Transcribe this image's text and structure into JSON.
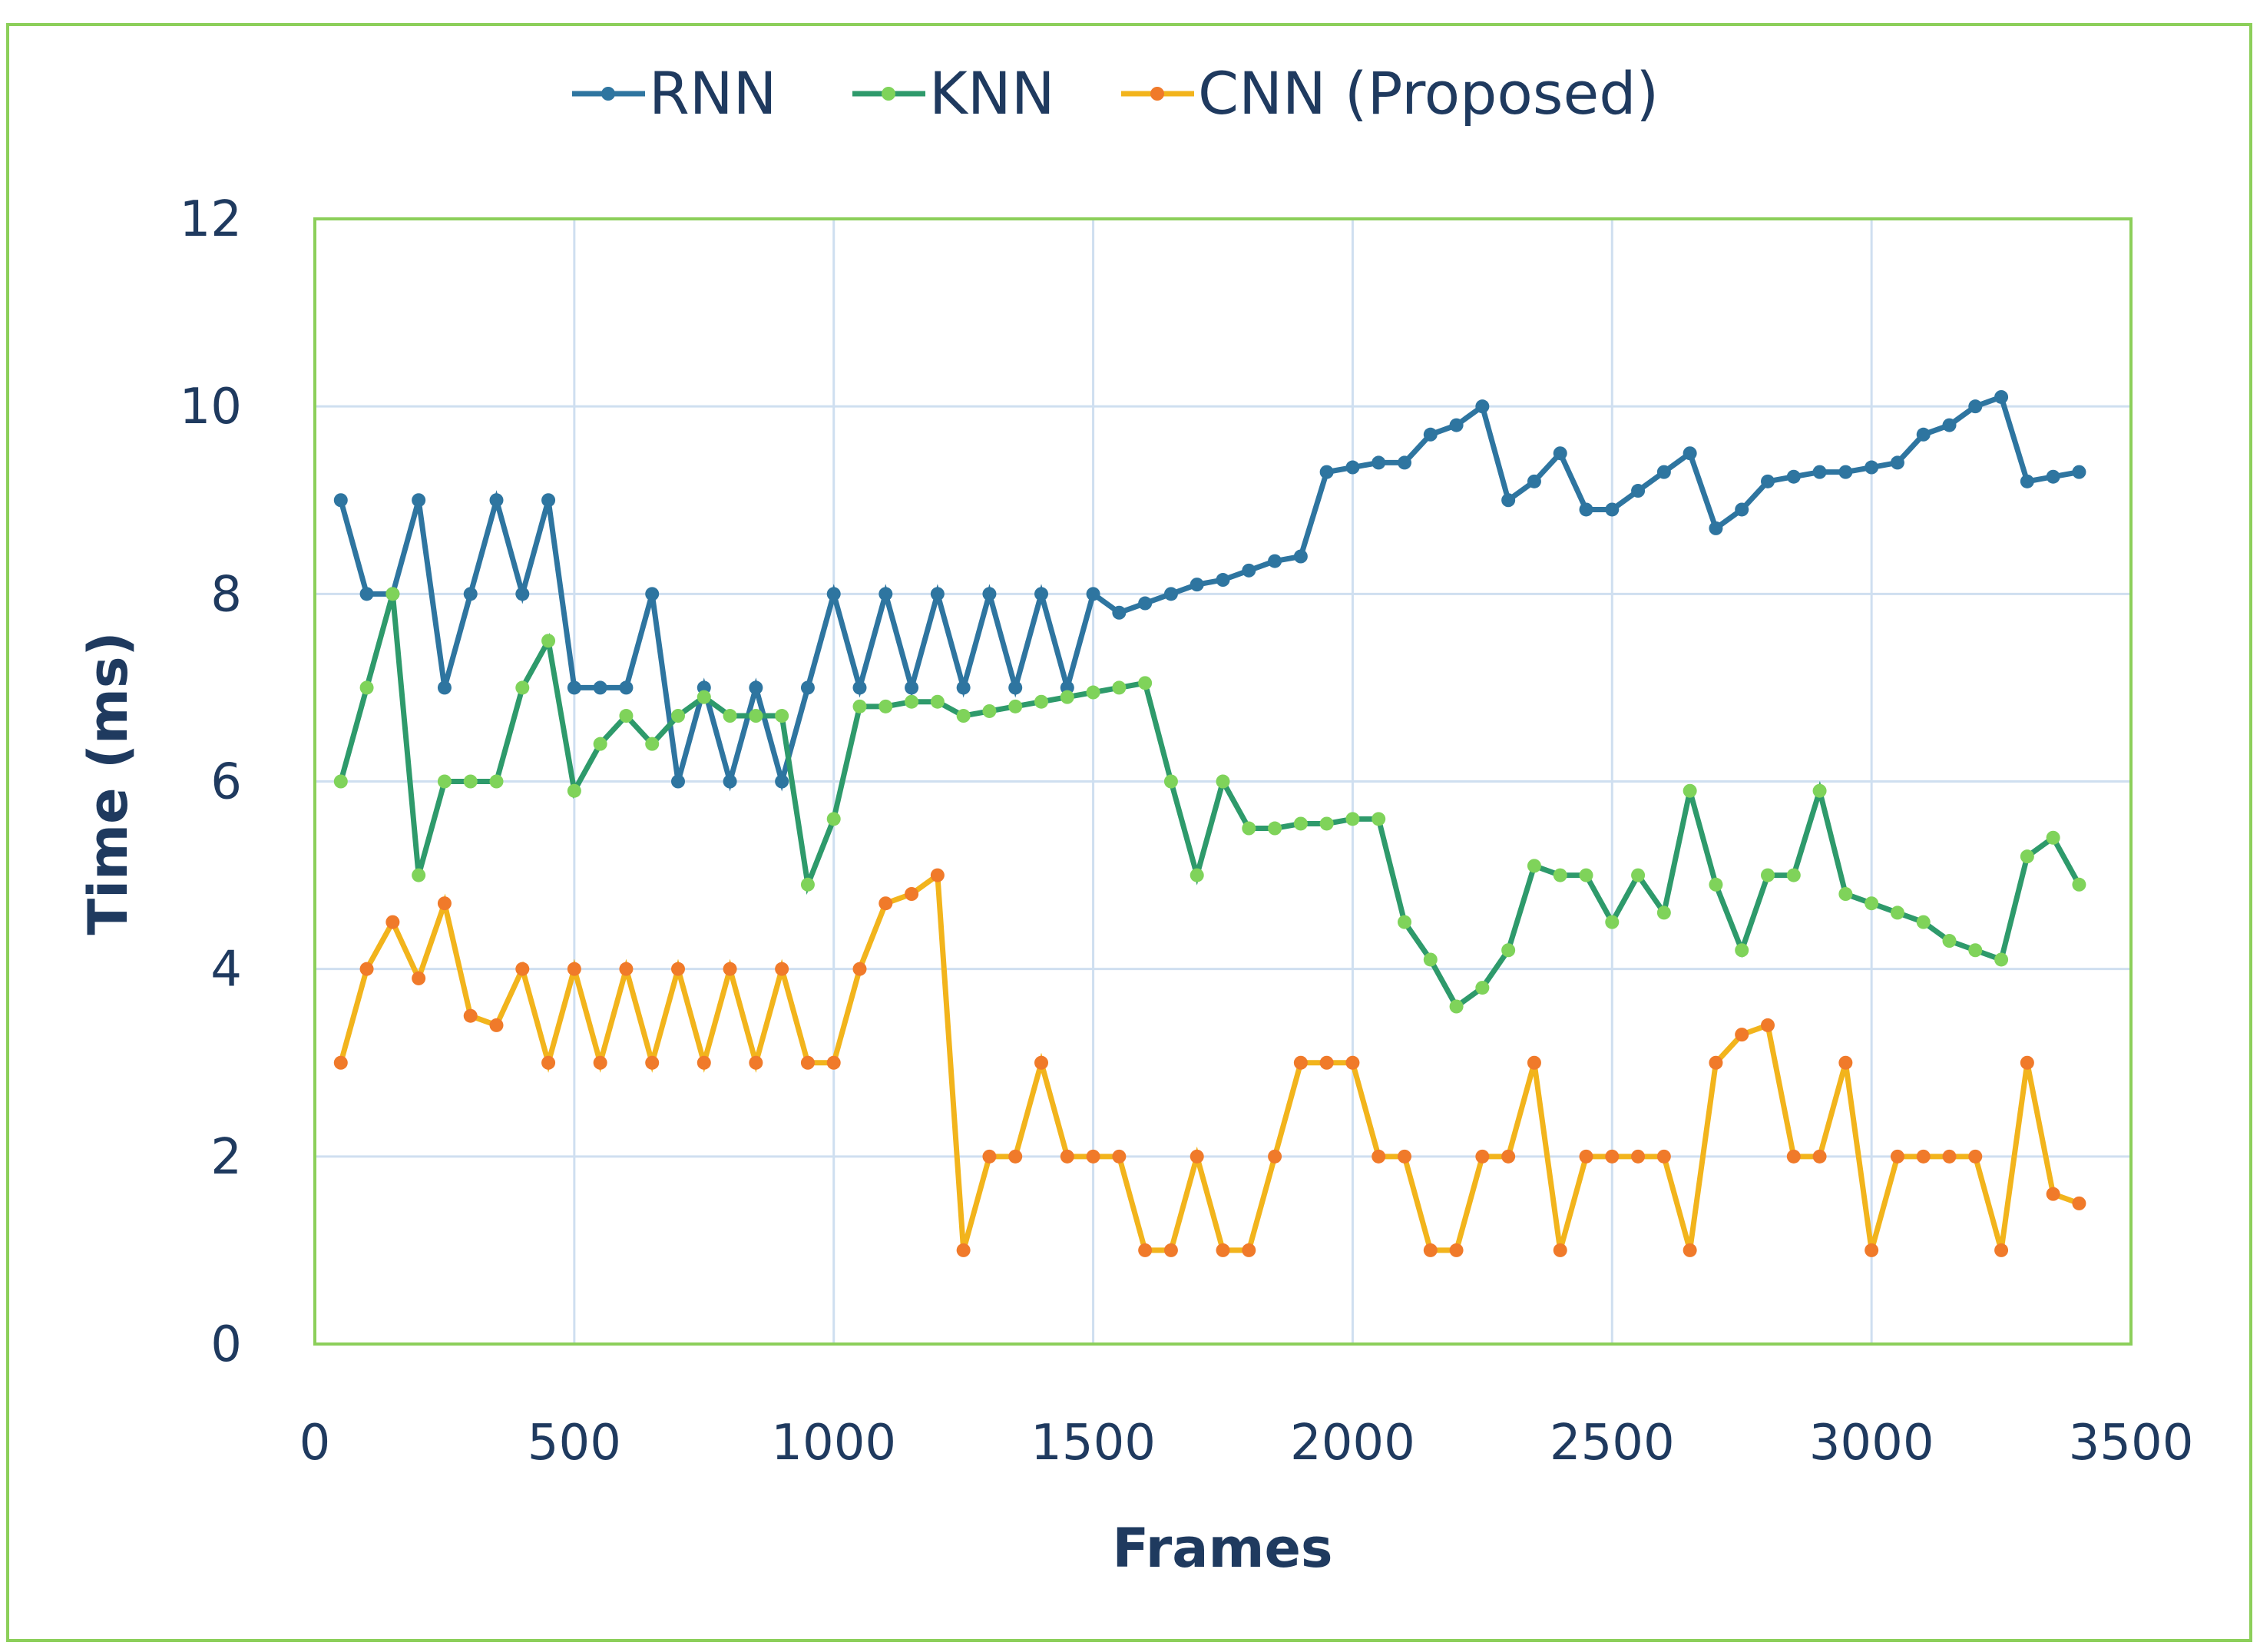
{
  "chart_data": {
    "type": "line",
    "xlabel": "Frames",
    "ylabel": "Time (ms)",
    "xlim": [
      0,
      3500
    ],
    "ylim": [
      0,
      12
    ],
    "xticks": [
      "0",
      "500",
      "1000",
      "1500",
      "2000",
      "2500",
      "3000",
      "3500"
    ],
    "yticks": [
      "0",
      "2",
      "4",
      "6",
      "8",
      "10",
      "12"
    ],
    "grid": true,
    "legend_position": "top-center",
    "x": [
      50,
      100,
      150,
      200,
      250,
      300,
      350,
      400,
      450,
      500,
      550,
      600,
      650,
      700,
      750,
      800,
      850,
      900,
      950,
      1000,
      1050,
      1100,
      1150,
      1200,
      1250,
      1300,
      1350,
      1400,
      1450,
      1500,
      1550,
      1600,
      1650,
      1700,
      1750,
      1800,
      1850,
      1900,
      1950,
      2000,
      2050,
      2100,
      2150,
      2200,
      2250,
      2300,
      2350,
      2400,
      2450,
      2500,
      2550,
      2600,
      2650,
      2700,
      2750,
      2800,
      2850,
      2900,
      2950,
      3000,
      3050,
      3100,
      3150,
      3200,
      3250,
      3300,
      3350,
      3400
    ],
    "series": [
      {
        "name": "RNN",
        "color": "#2e75a0",
        "values": [
          9,
          8,
          8,
          9,
          7,
          8,
          9,
          8,
          9,
          7,
          7,
          7,
          8,
          6,
          7,
          6,
          7,
          6,
          7,
          8,
          7,
          8,
          7,
          8,
          7,
          8,
          7,
          8,
          7,
          8,
          7.8,
          7.9,
          8,
          8.1,
          8.15,
          8.25,
          8.35,
          8.4,
          9.3,
          9.35,
          9.4,
          9.4,
          9.7,
          9.8,
          10,
          9,
          9.2,
          9.5,
          8.9,
          8.9,
          9.1,
          9.3,
          9.5,
          8.7,
          8.9,
          9.2,
          9.25,
          9.3,
          9.3,
          9.35,
          9.4,
          9.7,
          9.8,
          10,
          10.1,
          9.2,
          9.25,
          9.3
        ]
      },
      {
        "name": "KNN",
        "color": "#2e9a6b",
        "values": [
          6,
          7,
          8,
          5,
          6,
          6,
          6,
          7,
          7.5,
          5.9,
          6.4,
          6.7,
          6.4,
          6.7,
          6.9,
          6.7,
          6.7,
          6.7,
          4.9,
          5.6,
          6.8,
          6.8,
          6.85,
          6.85,
          6.7,
          6.75,
          6.8,
          6.85,
          6.9,
          6.95,
          7,
          7.05,
          6,
          5,
          6,
          5.5,
          5.5,
          5.55,
          5.55,
          5.6,
          5.6,
          4.5,
          4.1,
          3.6,
          3.8,
          4.2,
          5.1,
          5,
          5,
          4.5,
          5,
          4.6,
          5.9,
          4.9,
          4.2,
          5,
          5,
          5.9,
          4.8,
          4.7,
          4.6,
          4.5,
          4.3,
          4.2,
          4.1,
          5.2,
          5.4,
          4.9
        ]
      },
      {
        "name": "CNN (Proposed)",
        "color": "#f2b41c",
        "values": [
          3,
          4,
          4.5,
          3.9,
          4.7,
          3.5,
          3.4,
          4,
          3,
          4,
          3,
          4,
          3,
          4,
          3,
          4,
          3,
          4,
          3,
          3,
          4,
          4.7,
          4.8,
          5,
          1,
          2,
          2,
          3,
          2,
          2,
          2,
          1,
          1,
          2,
          1,
          1,
          2,
          3,
          3,
          3,
          2,
          2,
          1,
          1,
          2,
          2,
          3,
          1,
          2,
          2,
          2,
          2,
          1,
          3,
          3.3,
          3.4,
          2,
          2,
          3,
          1,
          2,
          2,
          2,
          2,
          1,
          3,
          1.6,
          1.5
        ]
      }
    ]
  }
}
